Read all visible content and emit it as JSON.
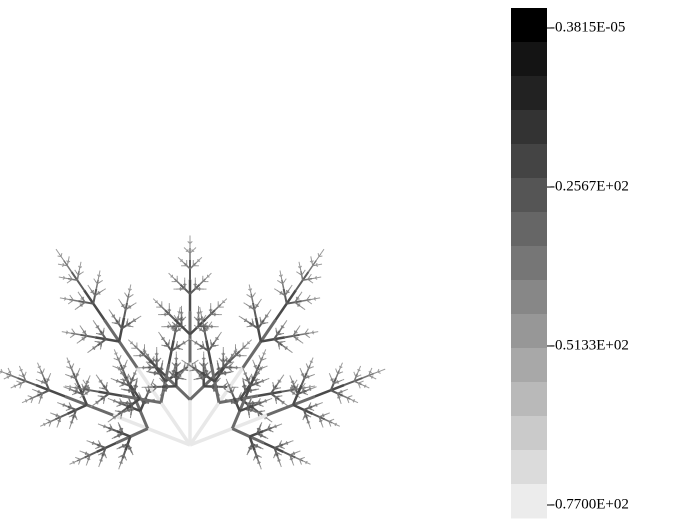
{
  "chart_data": {
    "type": "colorbar",
    "colorbar": {
      "clim": [
        -77.0,
        -3.815e-06
      ],
      "colors": [
        "#000000",
        "#141414",
        "#222222",
        "#333333",
        "#444444",
        "#555555",
        "#666666",
        "#767676",
        "#878787",
        "#979797",
        "#a8a8a8",
        "#b9b9b9",
        "#cacaca",
        "#dbdbdb",
        "#ececec"
      ],
      "ticks": [
        {
          "value": -3.815e-06,
          "label": "-0.3815E-05"
        },
        {
          "value": -25.67,
          "label": "-0.2567E+02"
        },
        {
          "value": -51.33,
          "label": "-0.5133E+02"
        },
        {
          "value": -77.0,
          "label": "-0.7700E+02"
        }
      ]
    }
  }
}
